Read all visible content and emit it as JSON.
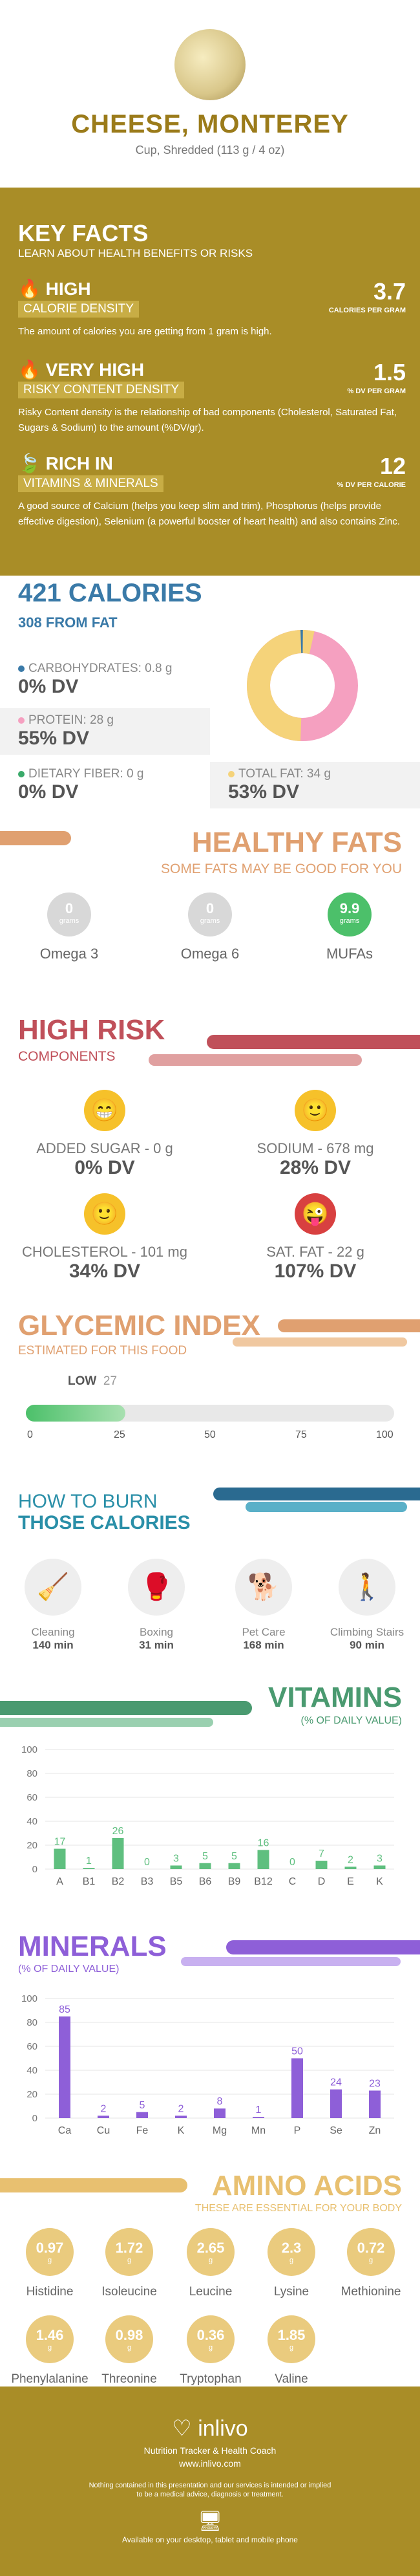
{
  "header": {
    "title": "CHEESE, MONTEREY",
    "subtitle": "Cup, Shredded (113 g / 4 oz)"
  },
  "key_facts": {
    "title": "KEY FACTS",
    "subtitle": "LEARN ABOUT HEALTH BENEFITS OR RISKS",
    "items": [
      {
        "level": "HIGH",
        "label": "CALORIE DENSITY",
        "value": "3.7",
        "unit": "CALORIES PER GRAM",
        "desc": "The amount of calories you are getting from 1 gram is high."
      },
      {
        "level": "VERY HIGH",
        "label": "RISKY CONTENT DENSITY",
        "value": "1.5",
        "unit": "% DV PER GRAM",
        "desc": "Risky Content density is the relationship of bad components (Cholesterol, Saturated Fat, Sugars & Sodium) to the amount (%DV/gr)."
      },
      {
        "level": "RICH IN",
        "label": "VITAMINS & MINERALS",
        "value": "12",
        "unit": "% DV PER CALORIE",
        "desc": "A good source of Calcium (helps you keep slim and trim), Phosphorus (helps provide effective digestion), Selenium (a powerful booster of heart health) and also contains Zinc."
      }
    ]
  },
  "calories": {
    "title": "421 CALORIES",
    "from_fat": "308 FROM FAT",
    "macros": [
      {
        "label": "CARBOHYDRATES: 0.8 g",
        "dv": "0% DV",
        "color": "#3a7aa8"
      },
      {
        "label": "PROTEIN: 28 g",
        "dv": "55% DV",
        "color": "#f5a0c0"
      },
      {
        "label": "DIETARY FIBER: 0 g",
        "dv": "0% DV",
        "color": "#3aaa6a"
      },
      {
        "label": "TOTAL FAT: 34 g",
        "dv": "53% DV",
        "color": "#f5d37a"
      }
    ]
  },
  "healthy_fats": {
    "title": "HEALTHY FATS",
    "subtitle": "SOME FATS MAY BE GOOD FOR YOU",
    "items": [
      {
        "value": "0",
        "unit": "grams",
        "name": "Omega 3",
        "color": "#d8d8d8"
      },
      {
        "value": "0",
        "unit": "grams",
        "name": "Omega 6",
        "color": "#d8d8d8"
      },
      {
        "value": "9.9",
        "unit": "grams",
        "name": "MUFAs",
        "color": "#4cc06a"
      }
    ]
  },
  "high_risk": {
    "title": "HIGH RISK",
    "subtitle": "COMPONENTS",
    "items": [
      {
        "label": "ADDED SUGAR - 0 g",
        "dv": "0% DV",
        "face": "😁"
      },
      {
        "label": "SODIUM - 678 mg",
        "dv": "28% DV",
        "face": "🙂"
      },
      {
        "label": "CHOLESTEROL - 101 mg",
        "dv": "34% DV",
        "face": "🙂"
      },
      {
        "label": "SAT. FAT - 22 g",
        "dv": "107% DV",
        "face": "😜"
      }
    ]
  },
  "glycemic": {
    "title": "GLYCEMIC INDEX",
    "subtitle": "ESTIMATED FOR THIS FOOD",
    "level": "LOW",
    "value": "27",
    "fraction": 0.27,
    "ticks": [
      "0",
      "25",
      "50",
      "75",
      "100"
    ]
  },
  "burn": {
    "title1": "HOW TO BURN",
    "title2": "THOSE CALORIES",
    "items": [
      {
        "name": "Cleaning",
        "time": "140 min",
        "icon": "cleaning-icon"
      },
      {
        "name": "Boxing",
        "time": "31 min",
        "icon": "boxing-icon"
      },
      {
        "name": "Pet Care",
        "time": "168 min",
        "icon": "pet-care-icon"
      },
      {
        "name": "Climbing Stairs",
        "time": "90 min",
        "icon": "stairs-icon"
      }
    ]
  },
  "chart_data": [
    {
      "type": "bar",
      "title": "VITAMINS",
      "subtitle": "(% OF DAILY VALUE)",
      "categories": [
        "A",
        "B1",
        "B2",
        "B3",
        "B5",
        "B6",
        "B9",
        "B12",
        "C",
        "D",
        "E",
        "K"
      ],
      "values": [
        17,
        1,
        26,
        0,
        3,
        5,
        5,
        16,
        0,
        7,
        2,
        3
      ],
      "ylim": [
        0,
        100
      ],
      "yticks": [
        "0",
        "20",
        "40",
        "60",
        "80",
        "100"
      ],
      "color": "#5fbf7f"
    },
    {
      "type": "bar",
      "title": "MINERALS",
      "subtitle": "(% OF DAILY VALUE)",
      "categories": [
        "Ca",
        "Cu",
        "Fe",
        "K",
        "Mg",
        "Mn",
        "P",
        "Se",
        "Zn"
      ],
      "values": [
        85,
        2,
        5,
        2,
        8,
        1,
        50,
        24,
        23
      ],
      "ylim": [
        0,
        100
      ],
      "yticks": [
        "0",
        "20",
        "40",
        "60",
        "80",
        "100"
      ],
      "color": "#8e5fd8"
    }
  ],
  "amino": {
    "title": "AMINO ACIDS",
    "subtitle": "THESE ARE ESSENTIAL FOR YOUR BODY",
    "items": [
      {
        "value": "0.97",
        "unit": "g",
        "name": "Histidine"
      },
      {
        "value": "1.72",
        "unit": "g",
        "name": "Isoleucine"
      },
      {
        "value": "2.65",
        "unit": "g",
        "name": "Leucine"
      },
      {
        "value": "2.3",
        "unit": "g",
        "name": "Lysine"
      },
      {
        "value": "0.72",
        "unit": "g",
        "name": "Methionine"
      },
      {
        "value": "1.46",
        "unit": "g",
        "name": "Phenylalanine"
      },
      {
        "value": "0.98",
        "unit": "g",
        "name": "Threonine"
      },
      {
        "value": "0.36",
        "unit": "g",
        "name": "Tryptophan"
      },
      {
        "value": "1.85",
        "unit": "g",
        "name": "Valine"
      }
    ]
  },
  "footer": {
    "brand": "inlivo",
    "tagline": "Nutrition Tracker & Health Coach",
    "url": "www.inlivo.com",
    "disclaimer1": "Nothing contained in this presentation and our services is intended or implied",
    "disclaimer2": "to be a medical advice, diagnosis or treatment.",
    "available": "Available on your desktop, tablet and mobile phone"
  },
  "colors": {
    "gold": "#a98d27",
    "blue": "#3a7aa8",
    "orange": "#e0a070",
    "red": "#c0505a",
    "teal": "#2a8fa8",
    "green": "#4cc06a",
    "purple": "#8e5fd8",
    "amber": "#e8c070"
  }
}
